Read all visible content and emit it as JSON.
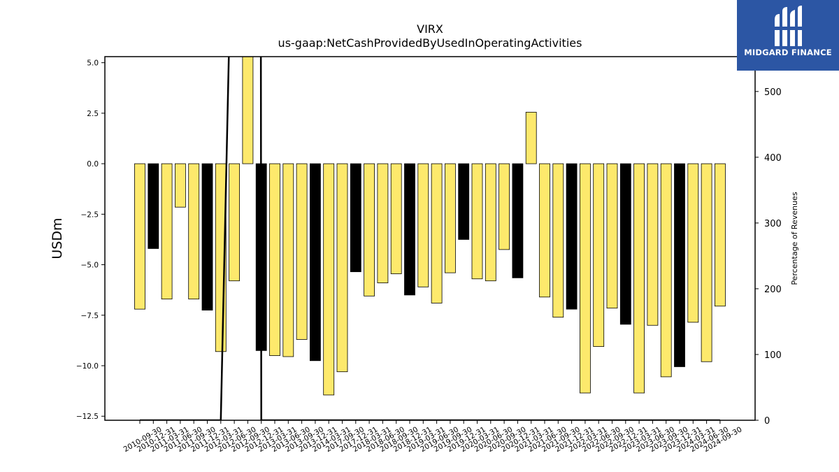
{
  "chart_data": {
    "type": "bar",
    "title": "VIRX",
    "subtitle": "us-gaap:NetCashProvidedByUsedInOperatingActivities",
    "ylabel": "USDm",
    "y2label": "Percentage of Revenues",
    "ylim": [
      -12.7,
      5.3
    ],
    "y2lim": [
      0,
      553
    ],
    "yticks": [
      "5.0",
      "2.5",
      "0.0",
      "−2.5",
      "−5.0",
      "−7.5",
      "−10.0",
      "−12.5"
    ],
    "y2ticks": [
      "500",
      "400",
      "300",
      "200",
      "100",
      "0"
    ],
    "categories": [
      "2010-09-30",
      "2010-12-31",
      "2011-03-31",
      "2011-06-30",
      "2011-09-30",
      "2011-12-31",
      "2012-03-31",
      "2012-06-30",
      "2012-09-30",
      "2012-12-31",
      "2013-03-31",
      "2013-06-30",
      "2013-09-30",
      "2013-12-31",
      "2014-03-31",
      "2017-09-30",
      "2017-12-31",
      "2018-03-31",
      "2018-06-30",
      "2018-09-30",
      "2018-12-31",
      "2019-03-31",
      "2019-06-30",
      "2019-09-30",
      "2019-12-31",
      "2020-03-31",
      "2020-06-30",
      "2020-09-30",
      "2020-12-31",
      "2021-03-31",
      "2021-06-30",
      "2021-09-30",
      "2021-12-31",
      "2022-03-31",
      "2022-06-30",
      "2022-09-30",
      "2022-12-31",
      "2023-03-31",
      "2023-06-30",
      "2023-09-30",
      "2023-12-31",
      "2024-03-31",
      "2024-06-30",
      "2024-09-30"
    ],
    "values": [
      -7.2,
      -4.2,
      -6.7,
      -2.15,
      -6.7,
      -7.25,
      -9.3,
      -5.8,
      5.5,
      -9.25,
      -9.5,
      -9.55,
      -8.7,
      -9.75,
      -11.45,
      -10.3,
      -5.35,
      -6.55,
      -5.9,
      -5.45,
      -6.5,
      -6.1,
      -6.9,
      -5.4,
      -3.75,
      -5.7,
      -5.8,
      -4.25,
      -5.65,
      2.55,
      -6.6,
      -7.6,
      -7.2,
      -11.35,
      -9.05,
      -7.15,
      -7.95,
      -11.35,
      -8.0,
      -10.55,
      -10.05,
      -7.85,
      -9.8,
      -7.05
    ],
    "colors": [
      "yellow",
      "black",
      "yellow",
      "yellow",
      "yellow",
      "black",
      "yellow",
      "yellow",
      "yellow",
      "black",
      "yellow",
      "yellow",
      "yellow",
      "black",
      "yellow",
      "yellow",
      "black",
      "yellow",
      "yellow",
      "yellow",
      "black",
      "yellow",
      "yellow",
      "yellow",
      "black",
      "yellow",
      "yellow",
      "yellow",
      "black",
      "yellow",
      "yellow",
      "yellow",
      "black",
      "yellow",
      "yellow",
      "yellow",
      "black",
      "yellow",
      "yellow",
      "yellow",
      "black",
      "yellow",
      "yellow",
      "yellow"
    ],
    "bar_colors": {
      "yellow": "#fde96c",
      "black": "#000000"
    },
    "pct_revenue_line": [
      0,
      0,
      0,
      0,
      0,
      0,
      0,
      null,
      null,
      0,
      0,
      0,
      0,
      0,
      0,
      0,
      0,
      0,
      0,
      0,
      0,
      0,
      0,
      0,
      0,
      0,
      0,
      0,
      0,
      0,
      0,
      0,
      0,
      0,
      0,
      0,
      0,
      0,
      0,
      0,
      0,
      0,
      0,
      0
    ],
    "grid": false
  },
  "logo": {
    "text": "MIDGARD FINANCE",
    "background": "#2c56a4"
  }
}
